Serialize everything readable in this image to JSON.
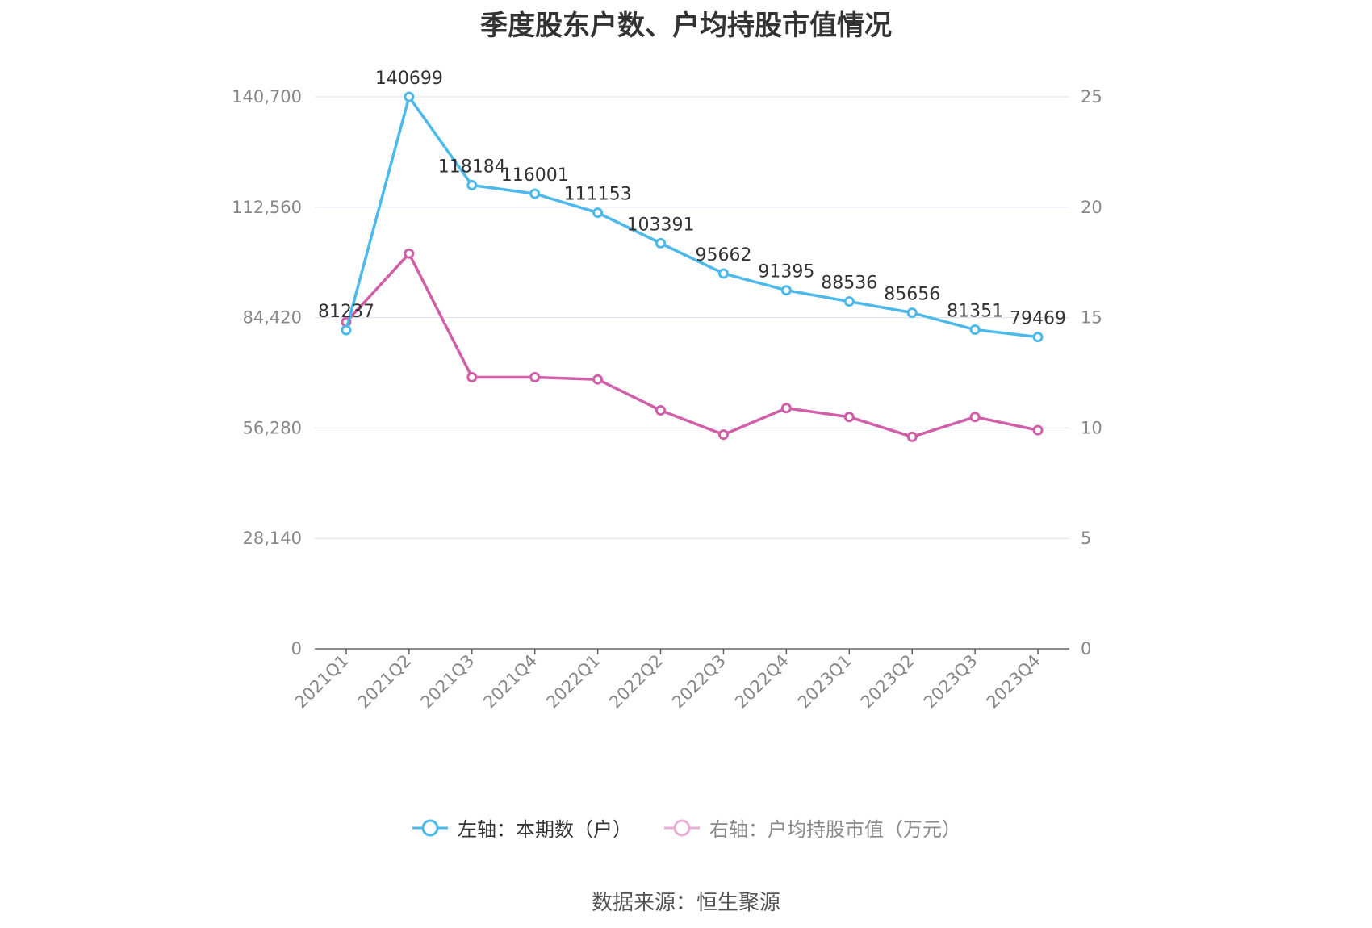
{
  "chart_data": {
    "type": "line",
    "title": "季度股东户数、户均持股市值情况",
    "categories": [
      "2021Q1",
      "2021Q2",
      "2021Q3",
      "2021Q4",
      "2022Q1",
      "2022Q2",
      "2022Q3",
      "2022Q4",
      "2023Q1",
      "2023Q2",
      "2023Q3",
      "2023Q4"
    ],
    "y_left": {
      "ticks": [
        "0",
        "28,140",
        "56,280",
        "84,420",
        "112,560",
        "140,700"
      ],
      "ylim": [
        0,
        140700
      ]
    },
    "y_right": {
      "ticks": [
        "0",
        "5",
        "10",
        "15",
        "20",
        "25"
      ],
      "ylim": [
        0,
        25
      ]
    },
    "grid": true,
    "legend_position": "bottom",
    "series": [
      {
        "name": "左轴：本期数（户）",
        "axis": "left",
        "color": "#4db8ea",
        "values": [
          81237,
          140699,
          118184,
          116001,
          111153,
          103391,
          95662,
          91395,
          88536,
          85656,
          81351,
          79469
        ],
        "labels": [
          "81237",
          "140699",
          "118184",
          "116001",
          "111153",
          "103391",
          "95662",
          "91395",
          "88536",
          "85656",
          "81351",
          "79469"
        ]
      },
      {
        "name": "右轴：户均持股市值（万元）",
        "axis": "right",
        "color": "#d05fa8",
        "values": [
          14.8,
          17.9,
          12.3,
          12.3,
          12.2,
          10.8,
          9.7,
          10.9,
          10.5,
          9.6,
          10.5,
          9.9
        ]
      }
    ],
    "source": "数据来源：恒生聚源"
  }
}
